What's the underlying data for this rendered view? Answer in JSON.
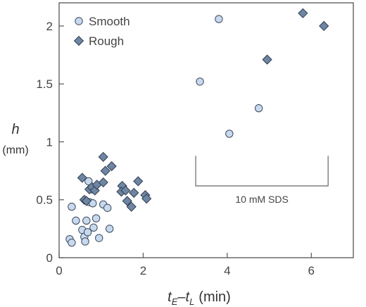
{
  "chart_data": {
    "type": "scatter",
    "xlim": [
      0,
      7
    ],
    "ylim": [
      0,
      2.2
    ],
    "xticks": [
      "0",
      "2",
      "4",
      "6"
    ],
    "xtick_values": [
      0,
      2,
      4,
      6
    ],
    "yticks": [
      "0",
      "0.5",
      "1",
      "1.5",
      "2"
    ],
    "ytick_values": [
      0,
      0.5,
      1,
      1.5,
      2
    ],
    "xlabel": {
      "var1": "t",
      "sub1": "E",
      "dash": "–",
      "var2": "t",
      "sub2": "L",
      "unit": "(min)"
    },
    "ylabel": {
      "var": "h",
      "unit": "(mm)"
    },
    "legend_position": "top-left",
    "grid": false,
    "series": [
      {
        "name": "Smooth",
        "marker": "circle",
        "color": "#c8d9ee",
        "points": [
          {
            "x": 0.25,
            "y": 0.16
          },
          {
            "x": 0.3,
            "y": 0.13
          },
          {
            "x": 0.3,
            "y": 0.44
          },
          {
            "x": 0.4,
            "y": 0.32
          },
          {
            "x": 0.55,
            "y": 0.24
          },
          {
            "x": 0.6,
            "y": 0.18
          },
          {
            "x": 0.62,
            "y": 0.14
          },
          {
            "x": 0.68,
            "y": 0.22
          },
          {
            "x": 0.65,
            "y": 0.32
          },
          {
            "x": 0.7,
            "y": 0.66
          },
          {
            "x": 0.72,
            "y": 0.48
          },
          {
            "x": 0.8,
            "y": 0.47
          },
          {
            "x": 0.78,
            "y": 0.59
          },
          {
            "x": 0.82,
            "y": 0.26
          },
          {
            "x": 0.88,
            "y": 0.34
          },
          {
            "x": 0.95,
            "y": 0.17
          },
          {
            "x": 1.05,
            "y": 0.46
          },
          {
            "x": 1.15,
            "y": 0.43
          },
          {
            "x": 1.2,
            "y": 0.25
          },
          {
            "x": 3.35,
            "y": 1.52
          },
          {
            "x": 3.8,
            "y": 2.06
          },
          {
            "x": 4.05,
            "y": 1.07
          },
          {
            "x": 4.75,
            "y": 1.29
          }
        ]
      },
      {
        "name": "Rough",
        "marker": "diamond",
        "color": "#6e86a3",
        "points": [
          {
            "x": 0.55,
            "y": 0.69
          },
          {
            "x": 0.6,
            "y": 0.5
          },
          {
            "x": 0.65,
            "y": 0.49
          },
          {
            "x": 0.72,
            "y": 0.59
          },
          {
            "x": 0.78,
            "y": 0.61
          },
          {
            "x": 0.85,
            "y": 0.58
          },
          {
            "x": 0.9,
            "y": 0.63
          },
          {
            "x": 1.05,
            "y": 0.87
          },
          {
            "x": 1.1,
            "y": 0.75
          },
          {
            "x": 1.25,
            "y": 0.79
          },
          {
            "x": 1.05,
            "y": 0.65
          },
          {
            "x": 1.5,
            "y": 0.62
          },
          {
            "x": 1.48,
            "y": 0.57
          },
          {
            "x": 1.58,
            "y": 0.58
          },
          {
            "x": 1.62,
            "y": 0.49
          },
          {
            "x": 1.72,
            "y": 0.44
          },
          {
            "x": 1.78,
            "y": 0.56
          },
          {
            "x": 1.88,
            "y": 0.66
          },
          {
            "x": 2.05,
            "y": 0.54
          },
          {
            "x": 2.08,
            "y": 0.51
          },
          {
            "x": 4.95,
            "y": 1.71
          },
          {
            "x": 5.8,
            "y": 2.11
          },
          {
            "x": 6.3,
            "y": 2.0
          }
        ]
      }
    ],
    "annotation": {
      "label": "10 mM SDS",
      "x_range": [
        3.25,
        6.4
      ],
      "y_top": 0.88,
      "y_bottom": 0.62
    }
  }
}
